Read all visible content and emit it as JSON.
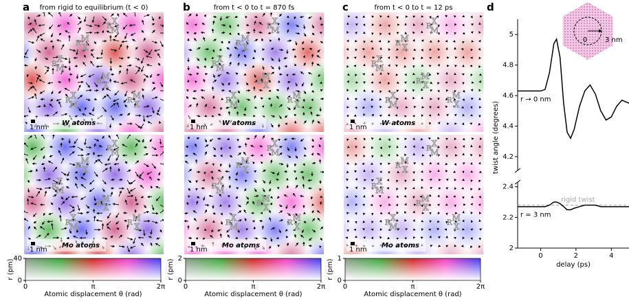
{
  "maps": [
    {
      "letter": "a",
      "title": "from rigid to equilibrium (t < 0)",
      "top_label": "W atoms",
      "bottom_label": "Mo atoms",
      "scale": "1 nm"
    },
    {
      "letter": "b",
      "title": "from t < 0 to t = 870 fs",
      "top_label": "W atoms",
      "bottom_label": "Mo atoms",
      "scale": "1 nm"
    },
    {
      "letter": "c",
      "title": "from t < 0 to t = 12 ps",
      "top_label": "W atoms",
      "bottom_label": "Mo atoms",
      "scale": "1 nm"
    }
  ],
  "stacking_labels": [
    {
      "base": "R",
      "sup": "M",
      "sub": "X"
    },
    {
      "base": "R",
      "sup": "X",
      "sub": "M"
    }
  ],
  "panel_d": {
    "letter": "d",
    "inset_labels": [
      "0",
      "3 nm"
    ]
  },
  "chart_data": [
    {
      "type": "colorbar",
      "ylabel": "r (pm)",
      "ylim": [
        0,
        40
      ],
      "yticks": [
        0,
        40
      ],
      "xlim": [
        0,
        6.28319
      ],
      "xticks": [
        0,
        {
          "value": 3.14159,
          "label": "π"
        },
        {
          "value": 6.28319,
          "label": "2π"
        }
      ],
      "xlabel": "Atomic displacement θ (rad)"
    },
    {
      "type": "colorbar",
      "ylabel": "r (pm)",
      "ylim": [
        0,
        2
      ],
      "yticks": [
        0,
        2
      ],
      "xlim": [
        0,
        6.28319
      ],
      "xticks": [
        0,
        {
          "value": 3.14159,
          "label": "π"
        },
        {
          "value": 6.28319,
          "label": "2π"
        }
      ],
      "xlabel": "Atomic displacement θ (rad)"
    },
    {
      "type": "colorbar",
      "ylabel": "r (pm)",
      "ylim": [
        0,
        1
      ],
      "yticks": [
        0,
        1
      ],
      "xlim": [
        0,
        6.28319
      ],
      "xticks": [
        0,
        {
          "value": 3.14159,
          "label": "π"
        },
        {
          "value": 6.28319,
          "label": "2π"
        }
      ],
      "xlabel": "Atomic displacement θ (rad)"
    },
    {
      "type": "line",
      "ylabel": "twist angle (degrees)",
      "xlim": [
        -1.3,
        5.0
      ],
      "ylim": [
        4.11,
        5.1
      ],
      "yticks": [
        4.2,
        4.4,
        4.6,
        4.8,
        5.0
      ],
      "x": [
        -1.3,
        0,
        0.25,
        0.5,
        0.75,
        0.9,
        1.1,
        1.3,
        1.5,
        1.7,
        1.9,
        2.2,
        2.5,
        2.8,
        3.1,
        3.4,
        3.7,
        4.0,
        4.3,
        4.6,
        5.0
      ],
      "series": [
        {
          "name": "r → 0 nm",
          "color": "#000000",
          "values": [
            4.63,
            4.63,
            4.64,
            4.75,
            4.94,
            4.97,
            4.85,
            4.55,
            4.36,
            4.32,
            4.38,
            4.53,
            4.63,
            4.67,
            4.61,
            4.5,
            4.44,
            4.46,
            4.53,
            4.57,
            4.55
          ]
        }
      ]
    },
    {
      "type": "line",
      "xlabel": "delay (ps)",
      "xlim": [
        -1.3,
        5.0
      ],
      "ylim": [
        2.0,
        2.43
      ],
      "yticks": [
        2.0,
        2.2,
        2.4
      ],
      "xticks": [
        0,
        2,
        4
      ],
      "x": [
        -1.3,
        0,
        0.25,
        0.5,
        0.75,
        0.9,
        1.1,
        1.3,
        1.5,
        1.7,
        1.9,
        2.2,
        2.5,
        2.8,
        3.1,
        3.4,
        3.7,
        4.0,
        4.3,
        4.6,
        5.0
      ],
      "series": [
        {
          "name": "r = 3 nm",
          "color": "#000000",
          "values": [
            2.27,
            2.27,
            2.27,
            2.28,
            2.3,
            2.3,
            2.29,
            2.27,
            2.25,
            2.25,
            2.26,
            2.27,
            2.28,
            2.28,
            2.28,
            2.27,
            2.27,
            2.27,
            2.27,
            2.27,
            2.27
          ]
        }
      ],
      "reference": {
        "label": "rigid twist",
        "value": 2.28,
        "color": "#aaaaaa"
      }
    }
  ]
}
